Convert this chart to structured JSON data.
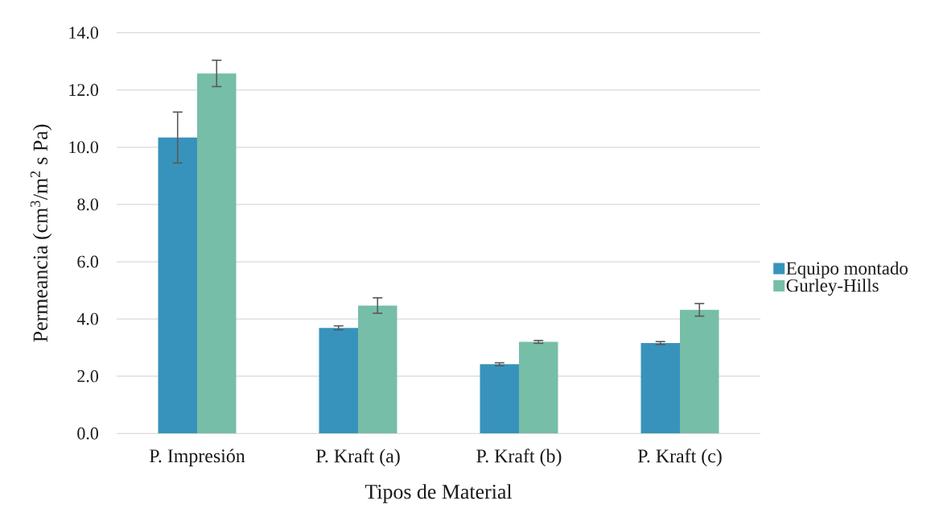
{
  "chart_data": {
    "type": "bar",
    "xlabel": "Tipos de Material",
    "ylabel": "Permeancia (cm$^{3}$/m$^{2}$ s Pa)",
    "categories": [
      "P. Impresión",
      "P. Kraft (a)",
      "P. Kraft (b)",
      "P. Kraft (c)"
    ],
    "series": [
      {
        "name": "Equipo montado",
        "color": "#3793bb",
        "values": [
          10.34,
          3.69,
          2.42,
          3.16
        ],
        "errors": [
          0.89,
          0.07,
          0.05,
          0.05
        ]
      },
      {
        "name": "Gurley-Hills",
        "color": "#76bea7",
        "values": [
          12.58,
          4.47,
          3.2,
          4.32
        ],
        "errors": [
          0.46,
          0.27,
          0.05,
          0.22
        ]
      }
    ],
    "ylim": [
      0,
      14
    ],
    "yticks": [
      {
        "value": 0,
        "label": "0.0"
      },
      {
        "value": 2,
        "label": "2.0"
      },
      {
        "value": 4,
        "label": "4.0"
      },
      {
        "value": 6,
        "label": "6.0"
      },
      {
        "value": 8,
        "label": "8.0"
      },
      {
        "value": 10,
        "label": "10.0"
      },
      {
        "value": 12,
        "label": "12.0"
      },
      {
        "value": 14,
        "label": "14.0"
      }
    ],
    "grid": "y",
    "legend": "right"
  }
}
